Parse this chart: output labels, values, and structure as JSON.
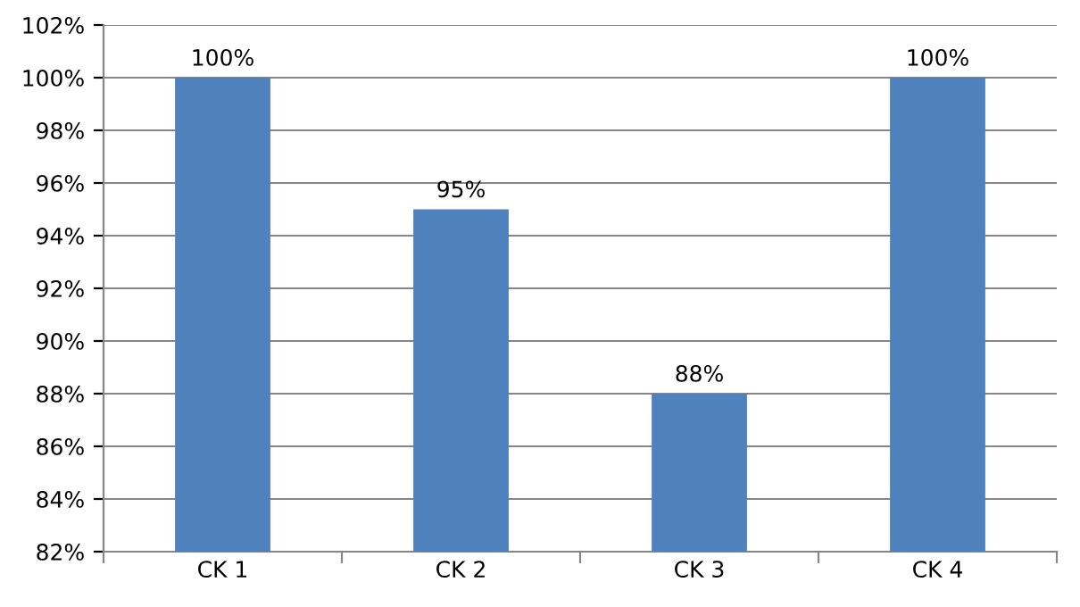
{
  "chart_data": {
    "type": "bar",
    "categories": [
      "CK 1",
      "CK 2",
      "CK 3",
      "CK 4"
    ],
    "values": [
      100,
      95,
      88,
      100
    ],
    "value_labels": [
      "100%",
      "95%",
      "88%",
      "100%"
    ],
    "color": "#4f81bd",
    "ylim": [
      82,
      102
    ],
    "yticks": [
      {
        "value": 82,
        "label": "82%"
      },
      {
        "value": 84,
        "label": "84%"
      },
      {
        "value": 86,
        "label": "86%"
      },
      {
        "value": 88,
        "label": "88%"
      },
      {
        "value": 90,
        "label": "90%"
      },
      {
        "value": 92,
        "label": "92%"
      },
      {
        "value": 94,
        "label": "94%"
      },
      {
        "value": 96,
        "label": "96%"
      },
      {
        "value": 98,
        "label": "98%"
      },
      {
        "value": 100,
        "label": "100%"
      },
      {
        "value": 102,
        "label": "102%"
      }
    ],
    "grid": "y",
    "legend": false
  }
}
